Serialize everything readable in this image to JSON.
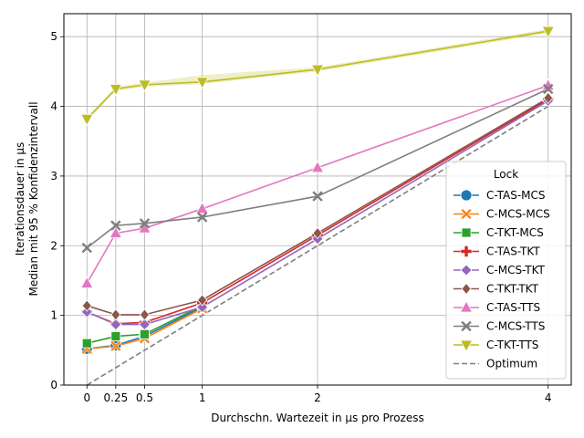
{
  "chart_data": {
    "type": "line",
    "xlabel": "Durchschn. Wartezeit in µs pro Prozess",
    "ylabel": [
      "Iterationsdauer in µs",
      "Median mit 95 % Konfidenzintervall"
    ],
    "x": [
      0,
      0.25,
      0.5,
      1,
      2,
      4
    ],
    "xticks": [
      0,
      0.25,
      0.5,
      1,
      2,
      4
    ],
    "xtick_labels": [
      "0",
      "0.25",
      "0.5",
      "1",
      "2",
      "4"
    ],
    "yticks": [
      0,
      1,
      2,
      3,
      4,
      5
    ],
    "ytick_labels": [
      "0",
      "1",
      "2",
      "3",
      "4",
      "5"
    ],
    "xlim": [
      -0.2,
      4.2
    ],
    "ylim": [
      0,
      5.33
    ],
    "grid": true,
    "legend_title": "Lock",
    "legend_position": "lower right",
    "series": [
      {
        "name": "C-TAS-MCS",
        "color": "#1f77b4",
        "marker": "circle",
        "x": [
          0,
          0.25,
          0.5,
          1
        ],
        "values": [
          0.52,
          0.57,
          0.7,
          1.12
        ]
      },
      {
        "name": "C-MCS-MCS",
        "color": "#ff7f0e",
        "marker": "x",
        "x": [
          0,
          0.25,
          0.5,
          1
        ],
        "values": [
          0.52,
          0.56,
          0.67,
          1.1
        ]
      },
      {
        "name": "C-TKT-MCS",
        "color": "#2ca02c",
        "marker": "square",
        "x": [
          0,
          0.25,
          0.5,
          1
        ],
        "values": [
          0.6,
          0.7,
          0.73,
          1.14
        ]
      },
      {
        "name": "C-TAS-TKT",
        "color": "#d62728",
        "marker": "plus",
        "x": [
          0,
          0.25,
          0.5,
          1,
          2,
          4
        ],
        "values": [
          1.05,
          0.88,
          0.9,
          1.18,
          2.15,
          4.1
        ]
      },
      {
        "name": "C-MCS-TKT",
        "color": "#9467bd",
        "marker": "diamond",
        "x": [
          0,
          0.25,
          0.5,
          1,
          2,
          4
        ],
        "values": [
          1.05,
          0.87,
          0.87,
          1.12,
          2.1,
          4.08
        ]
      },
      {
        "name": "C-TKT-TKT",
        "color": "#8c564b",
        "marker": "thin_diamond",
        "x": [
          0,
          0.25,
          0.5,
          1,
          2,
          4
        ],
        "values": [
          1.14,
          1.01,
          1.01,
          1.22,
          2.18,
          4.12
        ]
      },
      {
        "name": "C-TAS-TTS",
        "color": "#e377c2",
        "marker": "triangle_up",
        "x": [
          0,
          0.25,
          0.5,
          1,
          2,
          4
        ],
        "values": [
          1.46,
          2.18,
          2.25,
          2.53,
          3.12,
          4.3
        ]
      },
      {
        "name": "C-MCS-TTS",
        "color": "#7f7f7f",
        "marker": "x_thin",
        "x": [
          0,
          0.25,
          0.5,
          1,
          2,
          4
        ],
        "values": [
          1.97,
          2.29,
          2.32,
          2.41,
          2.71,
          4.25
        ]
      },
      {
        "name": "C-TKT-TTS",
        "color": "#bcbd22",
        "marker": "triangle_down",
        "x": [
          0,
          0.25,
          0.5,
          1,
          2,
          4
        ],
        "values": [
          3.82,
          4.25,
          4.31,
          4.35,
          4.53,
          5.08
        ]
      },
      {
        "name": "Optimum",
        "color": "#7f7f7f",
        "marker": "none",
        "dashed": true,
        "x": [
          0,
          0.25,
          0.5,
          1,
          2,
          4
        ],
        "values": [
          0,
          0.25,
          0.5,
          1,
          2,
          4
        ]
      }
    ]
  }
}
